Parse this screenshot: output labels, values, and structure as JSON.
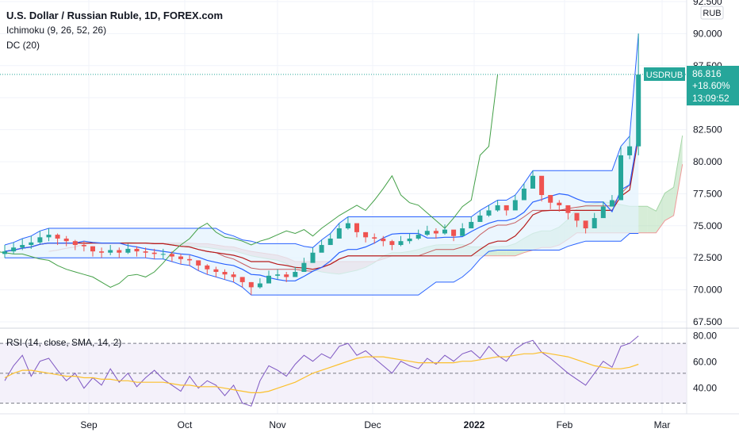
{
  "colors": {
    "up": "#26a69a",
    "down": "#ef5350",
    "chikou": "#43a047",
    "tenkan": "#2962ff",
    "kijun": "#b71c1c",
    "cloud_up": "#a5d6a7",
    "cloud_down": "#ef9a9a",
    "donchian": "#2962ff",
    "donchian_fill": "#e3f2fd",
    "rsi_line": "#7e57c2",
    "rsi_ma": "#fbc02d",
    "rsi_band": "#ede7f6",
    "price_tag": "#26a69a",
    "grid": "#f0f3fa",
    "axis_text": "#131722"
  },
  "header": {
    "title": "U.S. Dollar / Russian Ruble, 1D, FOREX.com",
    "indicator_ichimoku": "Ichimoku (9, 26, 52, 26)",
    "indicator_dc": "DC (20)",
    "currency_badge": "RUB"
  },
  "price_tag": {
    "symbol": "USDRUB",
    "price": "86.816",
    "change": "+18.60%",
    "countdown": "13:09:52"
  },
  "rsi_pane": {
    "label": "RSI (14, close, SMA, 14, 2)",
    "levels": [
      70,
      50,
      30
    ],
    "ylim": [
      25,
      78
    ],
    "ticks": [
      "80.00",
      "60.00",
      "40.00"
    ]
  },
  "chart_data": {
    "type": "line",
    "title": "U.S. Dollar / Russian Ruble, 1D, FOREX.com",
    "ylim": [
      67.5,
      92.5
    ],
    "y_ticks": [
      "92.500",
      "90.000",
      "87.500",
      "85.000",
      "82.500",
      "80.000",
      "77.500",
      "75.000",
      "72.500",
      "70.000",
      "67.500"
    ],
    "x_ticks": [
      "Sep",
      "Oct",
      "Nov",
      "Dec",
      "2022",
      "Feb",
      "Mar"
    ],
    "grid": true,
    "last_price": 86.816,
    "close": [
      73.0,
      73.3,
      73.5,
      73.7,
      74.1,
      74.3,
      74.0,
      73.8,
      73.5,
      73.4,
      73.0,
      72.9,
      73.1,
      72.9,
      73.2,
      73.0,
      72.9,
      72.8,
      72.8,
      72.6,
      72.4,
      72.3,
      71.9,
      71.6,
      71.4,
      71.2,
      71.0,
      70.6,
      70.2,
      70.5,
      71.1,
      71.2,
      71.0,
      71.4,
      72.1,
      72.9,
      73.5,
      74.0,
      74.8,
      75.2,
      74.5,
      74.1,
      74.0,
      73.8,
      73.5,
      73.8,
      74.0,
      74.3,
      74.6,
      74.4,
      74.7,
      74.2,
      74.8,
      75.3,
      75.8,
      76.2,
      76.6,
      76.2,
      77.0,
      77.9,
      78.9,
      77.4,
      76.8,
      76.6,
      76.0,
      75.4,
      74.8,
      75.6,
      76.5,
      77.0,
      80.5,
      81.2,
      86.8
    ],
    "highs": [
      73.5,
      73.7,
      74.0,
      74.2,
      74.6,
      74.8,
      74.4,
      74.2,
      73.9,
      73.8,
      73.4,
      73.3,
      73.5,
      73.3,
      73.6,
      73.4,
      73.3,
      73.2,
      73.2,
      73.0,
      72.8,
      72.7,
      72.3,
      72.0,
      71.8,
      71.6,
      71.4,
      71.0,
      70.6,
      70.9,
      71.5,
      71.6,
      71.4,
      71.8,
      72.5,
      73.3,
      73.9,
      74.4,
      75.2,
      75.7,
      74.9,
      74.5,
      74.4,
      74.2,
      73.9,
      74.2,
      74.4,
      74.7,
      75.0,
      74.8,
      75.1,
      74.6,
      75.2,
      75.7,
      76.2,
      76.6,
      77.0,
      76.6,
      77.4,
      78.3,
      79.3,
      77.8,
      77.2,
      77.0,
      76.4,
      75.8,
      75.2,
      76.0,
      76.9,
      77.4,
      81.2,
      82.0,
      90.0
    ],
    "lows": [
      72.5,
      72.8,
      73.1,
      73.2,
      73.6,
      73.8,
      73.5,
      73.4,
      73.1,
      73.0,
      72.6,
      72.5,
      72.7,
      72.5,
      72.8,
      72.6,
      72.5,
      72.4,
      72.4,
      72.2,
      72.0,
      71.9,
      71.5,
      71.2,
      71.0,
      70.8,
      70.6,
      70.2,
      69.6,
      70.1,
      70.7,
      70.8,
      70.6,
      71.0,
      71.6,
      72.4,
      73.0,
      73.5,
      74.3,
      74.7,
      74.1,
      73.7,
      73.6,
      73.4,
      73.1,
      73.4,
      73.6,
      73.9,
      74.2,
      74.0,
      74.3,
      73.8,
      74.4,
      74.8,
      75.3,
      75.7,
      76.1,
      75.8,
      76.5,
      77.4,
      78.3,
      76.9,
      76.3,
      76.1,
      75.5,
      74.9,
      74.4,
      75.1,
      76.0,
      76.5,
      79.5,
      80.2,
      80.5
    ],
    "rsi": [
      45,
      55,
      62,
      48,
      58,
      60,
      52,
      45,
      50,
      40,
      47,
      42,
      53,
      44,
      50,
      41,
      47,
      52,
      46,
      42,
      38,
      48,
      40,
      45,
      42,
      35,
      42,
      30,
      28,
      45,
      55,
      52,
      48,
      56,
      62,
      58,
      63,
      60,
      68,
      70,
      62,
      65,
      60,
      55,
      50,
      58,
      55,
      53,
      60,
      56,
      62,
      58,
      63,
      65,
      60,
      68,
      62,
      58,
      66,
      70,
      72,
      64,
      60,
      55,
      50,
      46,
      42,
      50,
      58,
      54,
      68,
      70,
      75
    ],
    "rsi_ma": [
      47,
      50,
      52,
      52,
      51,
      50,
      49,
      48,
      48,
      47,
      47,
      46,
      46,
      45,
      45,
      44,
      44,
      44,
      44,
      43,
      42,
      42,
      41,
      41,
      41,
      40,
      39,
      38,
      37,
      37,
      38,
      40,
      42,
      44,
      47,
      50,
      52,
      54,
      56,
      58,
      60,
      61,
      61,
      61,
      60,
      59,
      58,
      57,
      57,
      57,
      57,
      57,
      58,
      58,
      59,
      60,
      61,
      61,
      62,
      63,
      63,
      64,
      63,
      62,
      61,
      59,
      57,
      55,
      54,
      53,
      53,
      54,
      56
    ]
  }
}
